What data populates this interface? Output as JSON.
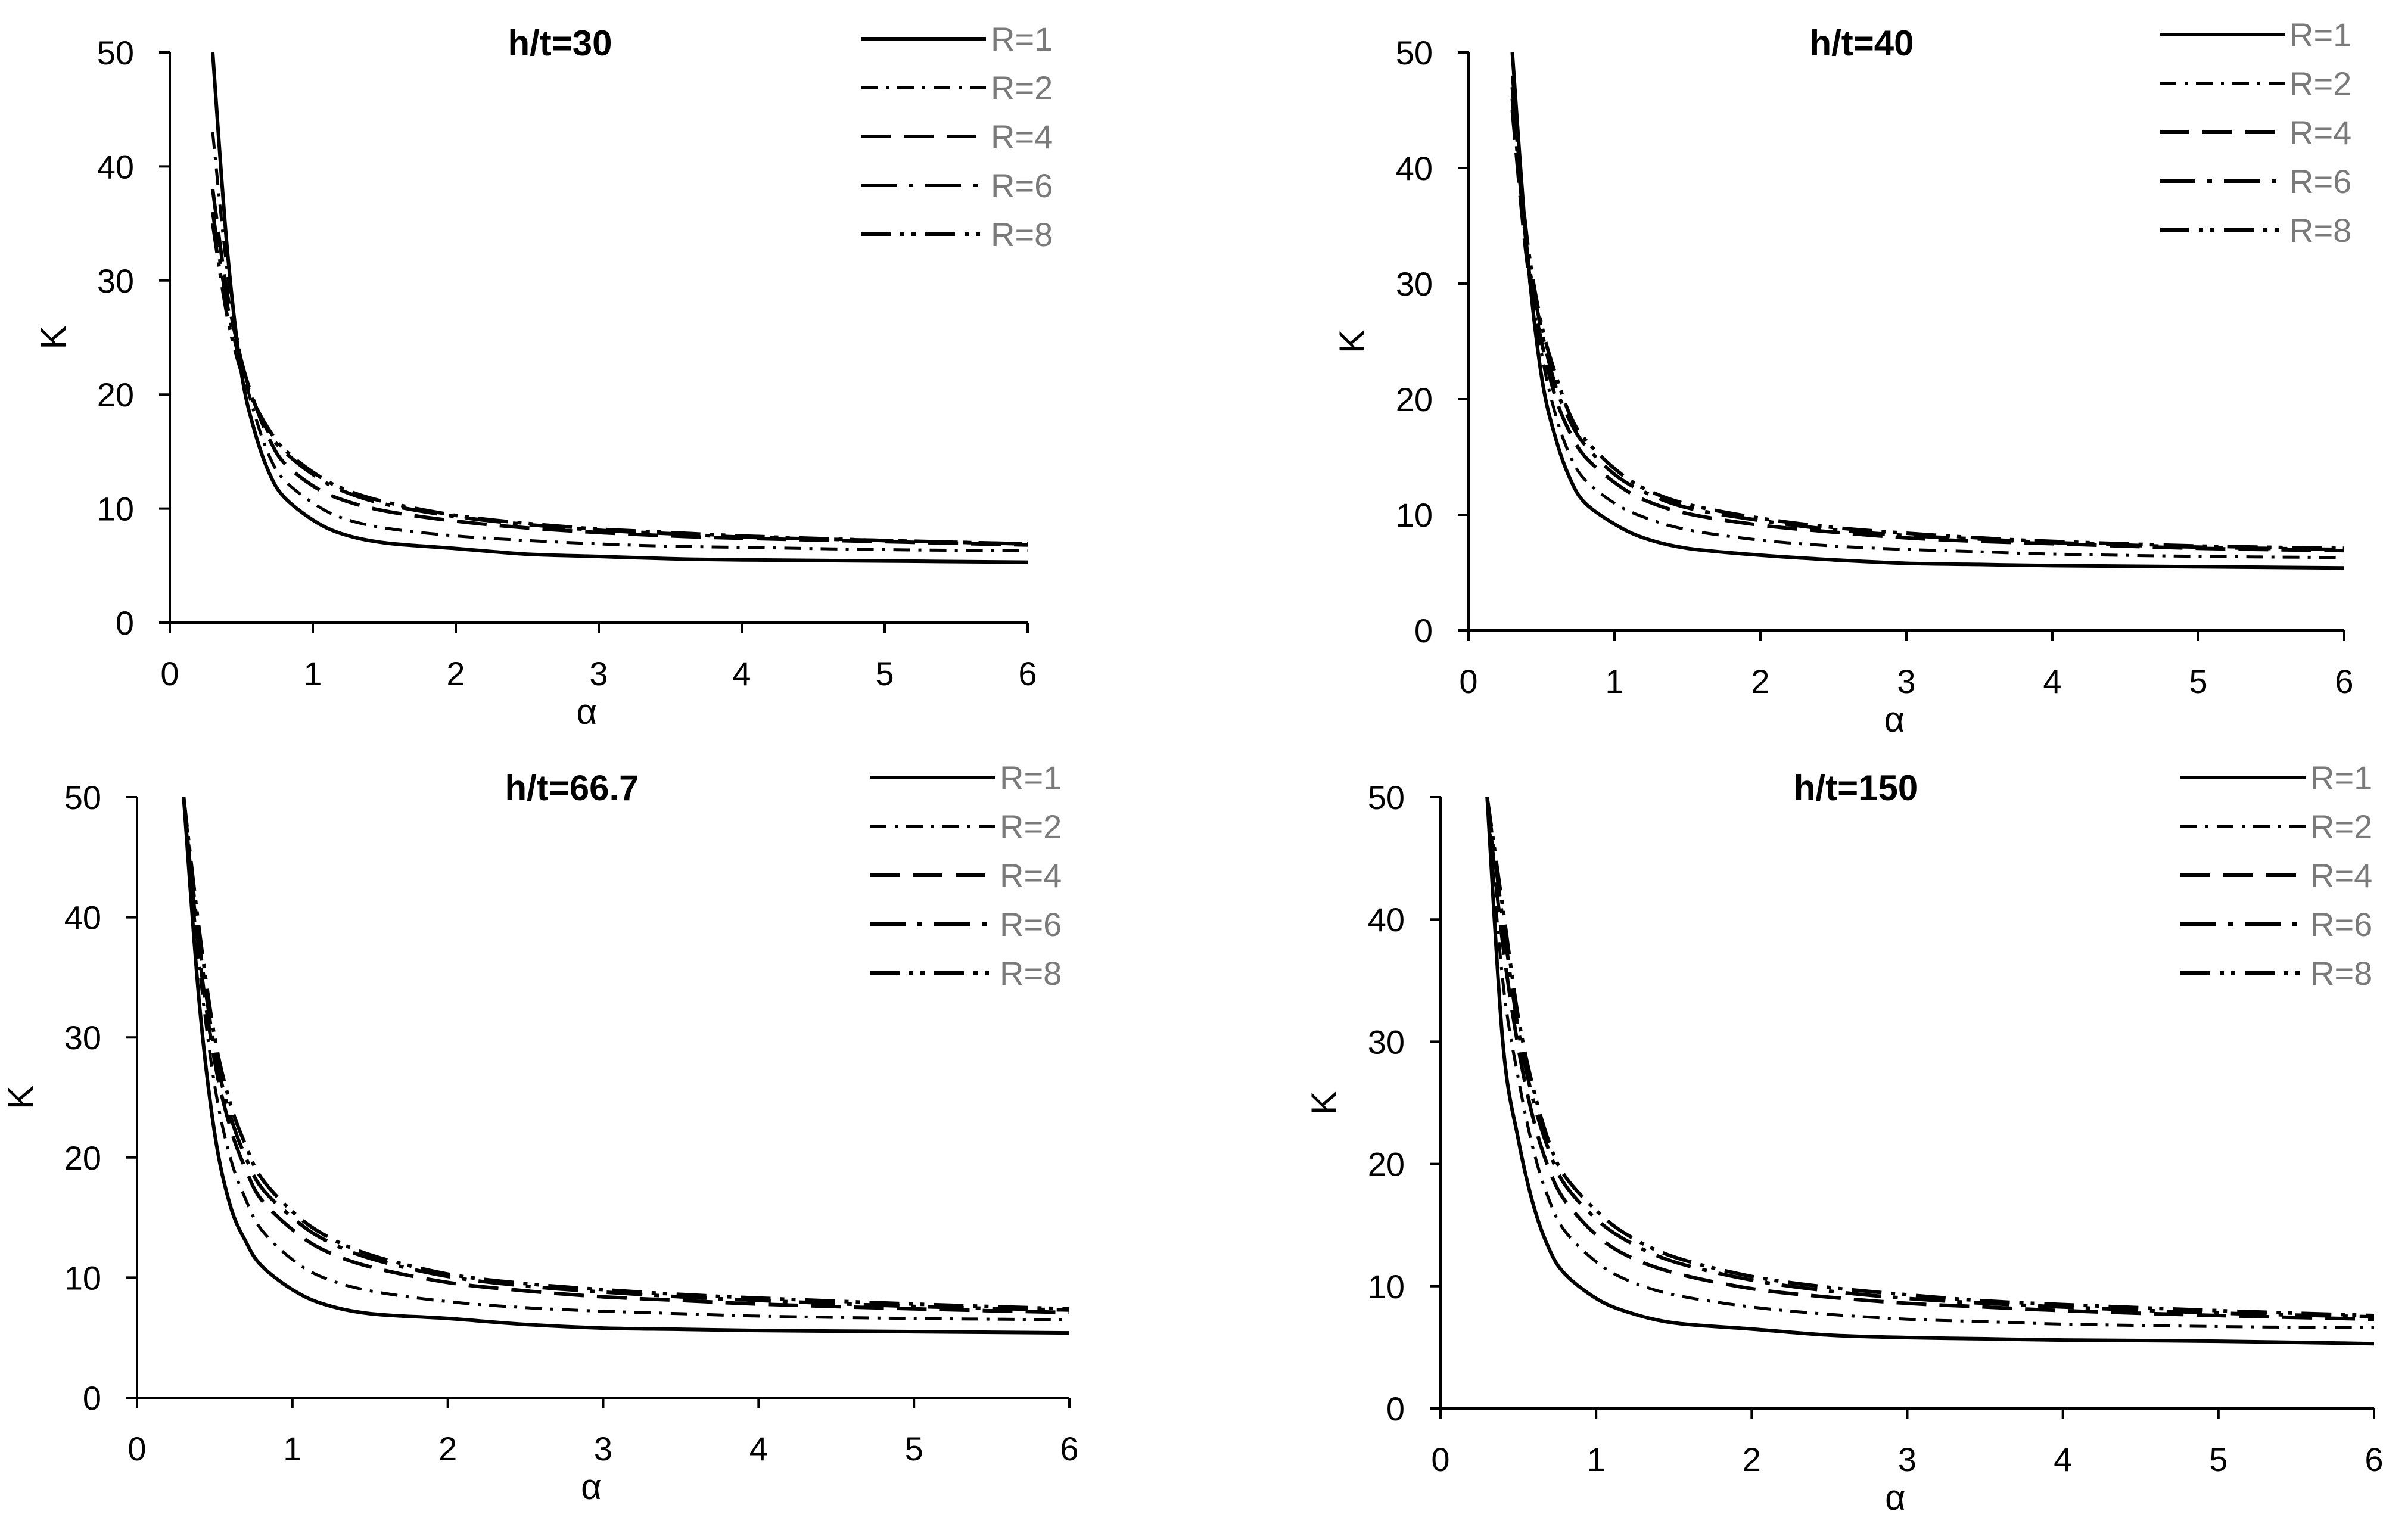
{
  "chart_data": [
    {
      "type": "line",
      "title": "h/t=30",
      "xlabel": "α",
      "ylabel": "K",
      "xlim": [
        0,
        6
      ],
      "ylim": [
        0,
        50
      ],
      "xticks": [
        "0",
        "1",
        "2",
        "3",
        "4",
        "5",
        "6"
      ],
      "yticks": [
        "0",
        "10",
        "20",
        "30",
        "40",
        "50"
      ],
      "x": [
        0.3,
        0.4,
        0.5,
        0.6,
        0.7,
        0.8,
        1.0,
        1.2,
        1.5,
        2.0,
        2.5,
        3.0,
        3.5,
        4.0,
        5.0,
        6.0
      ],
      "series": [
        {
          "name": "R=1",
          "values": [
            50,
            33,
            22,
            16.5,
            13,
            11,
            9,
            7.8,
            7.0,
            6.5,
            6.0,
            5.8,
            5.6,
            5.5,
            5.4,
            5.3
          ]
        },
        {
          "name": "R=2",
          "values": [
            43,
            31,
            23,
            18,
            14.5,
            12.5,
            10.5,
            9.2,
            8.3,
            7.6,
            7.2,
            6.9,
            6.7,
            6.6,
            6.4,
            6.3
          ]
        },
        {
          "name": "R=4",
          "values": [
            38,
            29,
            23,
            19,
            16,
            14,
            12,
            10.8,
            9.8,
            8.9,
            8.3,
            7.9,
            7.6,
            7.4,
            7.1,
            6.8
          ]
        },
        {
          "name": "R=6",
          "values": [
            36,
            28,
            22.5,
            19,
            16.5,
            15,
            13,
            11.6,
            10.4,
            9.3,
            8.6,
            8.1,
            7.8,
            7.5,
            7.2,
            6.9
          ]
        },
        {
          "name": "R=8",
          "values": [
            35,
            27,
            22,
            19,
            16.8,
            15.2,
            13.2,
            11.8,
            10.6,
            9.4,
            8.7,
            8.2,
            7.9,
            7.6,
            7.2,
            6.9
          ]
        }
      ]
    },
    {
      "type": "line",
      "title": "h/t=40",
      "xlabel": "α",
      "ylabel": "K",
      "xlim": [
        0,
        6
      ],
      "ylim": [
        0,
        50
      ],
      "xticks": [
        "0",
        "1",
        "2",
        "3",
        "4",
        "5",
        "6"
      ],
      "yticks": [
        "0",
        "10",
        "20",
        "30",
        "40",
        "50"
      ],
      "x": [
        0.3,
        0.4,
        0.5,
        0.6,
        0.7,
        0.8,
        1.0,
        1.2,
        1.5,
        2.0,
        2.5,
        3.0,
        3.5,
        4.0,
        5.0,
        6.0
      ],
      "series": [
        {
          "name": "R=1",
          "values": [
            50,
            33,
            22,
            16.5,
            13,
            11,
            9.2,
            8.0,
            7.1,
            6.5,
            6.1,
            5.8,
            5.7,
            5.6,
            5.5,
            5.4
          ]
        },
        {
          "name": "R=2",
          "values": [
            48,
            33,
            24,
            18.5,
            15,
            13,
            11,
            9.8,
            8.7,
            7.8,
            7.3,
            7.0,
            6.8,
            6.6,
            6.4,
            6.3
          ]
        },
        {
          "name": "R=4",
          "values": [
            45,
            32,
            25,
            20,
            17,
            15,
            12.8,
            11.3,
            10.1,
            9.1,
            8.5,
            8.0,
            7.7,
            7.5,
            7.1,
            6.9
          ]
        },
        {
          "name": "R=6",
          "values": [
            46,
            33,
            26,
            21,
            18,
            16,
            13.5,
            12,
            10.6,
            9.5,
            8.7,
            8.2,
            7.9,
            7.6,
            7.2,
            7.0
          ]
        },
        {
          "name": "R=8",
          "values": [
            47,
            34,
            26.5,
            22,
            18.5,
            16.5,
            14,
            12.3,
            10.9,
            9.7,
            8.9,
            8.4,
            8.0,
            7.7,
            7.3,
            7.1
          ]
        }
      ]
    },
    {
      "type": "line",
      "title": "h/t=66.7",
      "xlabel": "α",
      "ylabel": "K",
      "xlim": [
        0,
        6
      ],
      "ylim": [
        0,
        50
      ],
      "xticks": [
        "0",
        "1",
        "2",
        "3",
        "4",
        "5",
        "6"
      ],
      "yticks": [
        "0",
        "10",
        "20",
        "30",
        "40",
        "50"
      ],
      "x": [
        0.3,
        0.4,
        0.5,
        0.6,
        0.7,
        0.8,
        1.0,
        1.2,
        1.5,
        2.0,
        2.5,
        3.0,
        3.5,
        4.0,
        5.0,
        6.0
      ],
      "series": [
        {
          "name": "R=1",
          "values": [
            50,
            33,
            22,
            16,
            13,
            11,
            9.0,
            7.8,
            7.0,
            6.6,
            6.1,
            5.8,
            5.7,
            5.6,
            5.5,
            5.4
          ]
        },
        {
          "name": "R=2",
          "values": [
            50,
            36,
            26,
            20,
            16.5,
            14,
            11.5,
            10,
            8.9,
            8.0,
            7.5,
            7.2,
            7.0,
            6.8,
            6.6,
            6.5
          ]
        },
        {
          "name": "R=4",
          "values": [
            50,
            37,
            28,
            22.5,
            19,
            16.5,
            14,
            12.3,
            10.9,
            9.6,
            8.9,
            8.4,
            8.1,
            7.8,
            7.4,
            7.1
          ]
        },
        {
          "name": "R=6",
          "values": [
            50,
            38,
            29,
            23.5,
            20,
            17.5,
            15,
            13.2,
            11.6,
            10.1,
            9.3,
            8.8,
            8.4,
            8.1,
            7.6,
            7.3
          ]
        },
        {
          "name": "R=8",
          "values": [
            50,
            39,
            30,
            24.5,
            21,
            18.3,
            15.5,
            13.6,
            11.9,
            10.3,
            9.5,
            9.0,
            8.6,
            8.3,
            7.8,
            7.4
          ]
        }
      ]
    },
    {
      "type": "line",
      "title": "h/t=150",
      "xlabel": "α",
      "ylabel": "K",
      "xlim": [
        0,
        6
      ],
      "ylim": [
        0,
        50
      ],
      "xticks": [
        "0",
        "1",
        "2",
        "3",
        "4",
        "5",
        "6"
      ],
      "yticks": [
        "0",
        "10",
        "20",
        "30",
        "40",
        "50"
      ],
      "x": [
        0.3,
        0.4,
        0.5,
        0.6,
        0.7,
        0.8,
        1.0,
        1.2,
        1.5,
        2.0,
        2.5,
        3.0,
        3.5,
        4.0,
        5.0,
        6.0
      ],
      "series": [
        {
          "name": "R=1",
          "values": [
            50,
            30,
            22,
            16.5,
            13,
            11,
            9.0,
            7.9,
            7.0,
            6.5,
            6.0,
            5.8,
            5.7,
            5.6,
            5.5,
            5.3
          ]
        },
        {
          "name": "R=2",
          "values": [
            50,
            35,
            27,
            21,
            17,
            14.5,
            12,
            10.5,
            9.3,
            8.3,
            7.7,
            7.3,
            7.1,
            6.9,
            6.7,
            6.6
          ]
        },
        {
          "name": "R=4",
          "values": [
            50,
            38,
            29.5,
            23.5,
            19.5,
            17,
            14.2,
            12.5,
            11.1,
            9.8,
            9.1,
            8.6,
            8.3,
            8.0,
            7.6,
            7.3
          ]
        },
        {
          "name": "R=6",
          "values": [
            50,
            40,
            31,
            25,
            21,
            18.3,
            15.5,
            13.7,
            12.0,
            10.5,
            9.6,
            9.0,
            8.6,
            8.3,
            7.8,
            7.5
          ]
        },
        {
          "name": "R=8",
          "values": [
            50,
            41,
            32,
            26,
            21.7,
            19,
            16.2,
            14.2,
            12.4,
            10.8,
            9.9,
            9.3,
            8.8,
            8.5,
            8.0,
            7.6
          ]
        }
      ]
    }
  ]
}
